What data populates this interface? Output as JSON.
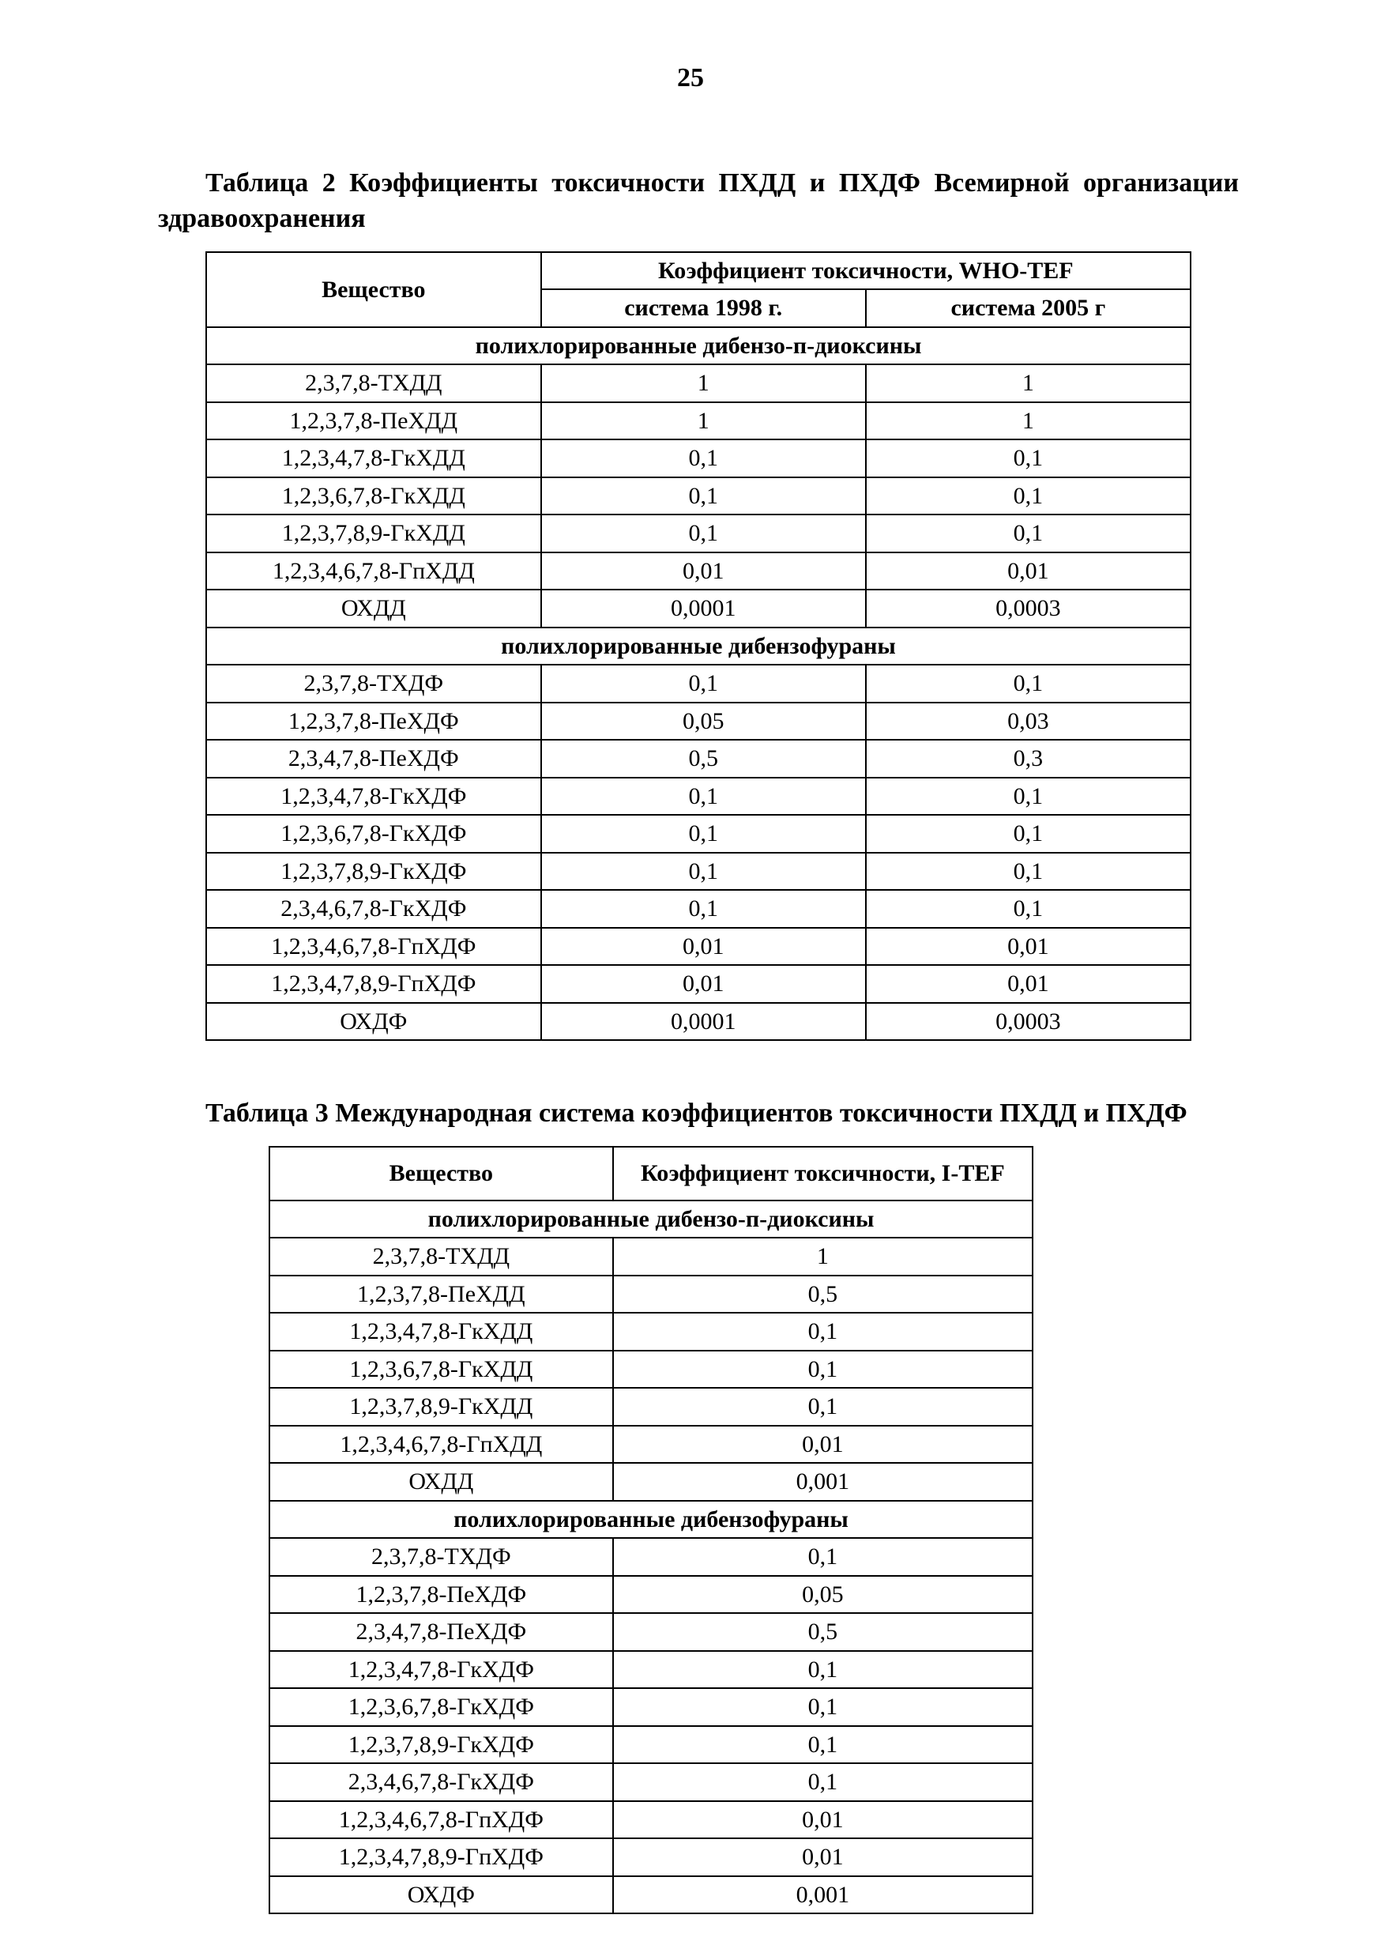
{
  "page_number": "25",
  "text_color": "#000000",
  "background_color": "#ffffff",
  "border_color": "#000000",
  "font": {
    "family": "Times New Roman",
    "body_size_pt": 12,
    "caption_bold": true
  },
  "table1": {
    "type": "table",
    "caption": "Таблица 2 Коэффициенты токсичности ПХДД и ПХДФ Всемирной организации здравоохранения",
    "header_substance": "Вещество",
    "header_group": "Коэффициент токсичности, WHO-TEF",
    "header_sys1998": "система 1998 г.",
    "header_sys2005": "система 2005 г",
    "section1": "полихлорированные дибензо-п-диоксины",
    "section2": "полихлорированные дибензофураны",
    "col_widths_pct": [
      34,
      33,
      33
    ],
    "dioxins": [
      {
        "name": "2,3,7,8-ТХДД",
        "v1998": "1",
        "v2005": "1"
      },
      {
        "name": "1,2,3,7,8-ПеХДД",
        "v1998": "1",
        "v2005": "1"
      },
      {
        "name": "1,2,3,4,7,8-ГкХДД",
        "v1998": "0,1",
        "v2005": "0,1"
      },
      {
        "name": "1,2,3,6,7,8-ГкХДД",
        "v1998": "0,1",
        "v2005": "0,1"
      },
      {
        "name": "1,2,3,7,8,9-ГкХДД",
        "v1998": "0,1",
        "v2005": "0,1"
      },
      {
        "name": "1,2,3,4,6,7,8-ГпХДД",
        "v1998": "0,01",
        "v2005": "0,01"
      },
      {
        "name": "ОХДД",
        "v1998": "0,0001",
        "v2005": "0,0003"
      }
    ],
    "furans": [
      {
        "name": "2,3,7,8-ТХДФ",
        "v1998": "0,1",
        "v2005": "0,1"
      },
      {
        "name": "1,2,3,7,8-ПеХДФ",
        "v1998": "0,05",
        "v2005": "0,03"
      },
      {
        "name": "2,3,4,7,8-ПеХДФ",
        "v1998": "0,5",
        "v2005": "0,3"
      },
      {
        "name": "1,2,3,4,7,8-ГкХДФ",
        "v1998": "0,1",
        "v2005": "0,1"
      },
      {
        "name": "1,2,3,6,7,8-ГкХДФ",
        "v1998": "0,1",
        "v2005": "0,1"
      },
      {
        "name": "1,2,3,7,8,9-ГкХДФ",
        "v1998": "0,1",
        "v2005": "0,1"
      },
      {
        "name": "2,3,4,6,7,8-ГкХДФ",
        "v1998": "0,1",
        "v2005": "0,1"
      },
      {
        "name": "1,2,3,4,6,7,8-ГпХДФ",
        "v1998": "0,01",
        "v2005": "0,01"
      },
      {
        "name": "1,2,3,4,7,8,9-ГпХДФ",
        "v1998": "0,01",
        "v2005": "0,01"
      },
      {
        "name": "ОХДФ",
        "v1998": "0,0001",
        "v2005": "0,0003"
      }
    ]
  },
  "table2": {
    "type": "table",
    "caption": "Таблица 3 Международная система коэффициентов токсичности ПХДД и ПХДФ",
    "header_substance": "Вещество",
    "header_coef": "Коэффициент токсичности, I-TEF",
    "section1": "полихлорированные дибензо-п-диоксины",
    "section2": "полихлорированные дибензофураны",
    "col_widths_pct": [
      45,
      55
    ],
    "dioxins": [
      {
        "name": "2,3,7,8-ТХДД",
        "v": "1"
      },
      {
        "name": "1,2,3,7,8-ПеХДД",
        "v": "0,5"
      },
      {
        "name": "1,2,3,4,7,8-ГкХДД",
        "v": "0,1"
      },
      {
        "name": "1,2,3,6,7,8-ГкХДД",
        "v": "0,1"
      },
      {
        "name": "1,2,3,7,8,9-ГкХДД",
        "v": "0,1"
      },
      {
        "name": "1,2,3,4,6,7,8-ГпХДД",
        "v": "0,01"
      },
      {
        "name": "ОХДД",
        "v": "0,001"
      }
    ],
    "furans": [
      {
        "name": "2,3,7,8-ТХДФ",
        "v": "0,1"
      },
      {
        "name": "1,2,3,7,8-ПеХДФ",
        "v": "0,05"
      },
      {
        "name": "2,3,4,7,8-ПеХДФ",
        "v": "0,5"
      },
      {
        "name": "1,2,3,4,7,8-ГкХДФ",
        "v": "0,1"
      },
      {
        "name": "1,2,3,6,7,8-ГкХДФ",
        "v": "0,1"
      },
      {
        "name": "1,2,3,7,8,9-ГкХДФ",
        "v": "0,1"
      },
      {
        "name": "2,3,4,6,7,8-ГкХДФ",
        "v": "0,1"
      },
      {
        "name": "1,2,3,4,6,7,8-ГпХДФ",
        "v": "0,01"
      },
      {
        "name": "1,2,3,4,7,8,9-ГпХДФ",
        "v": "0,01"
      },
      {
        "name": "ОХДФ",
        "v": "0,001"
      }
    ]
  }
}
